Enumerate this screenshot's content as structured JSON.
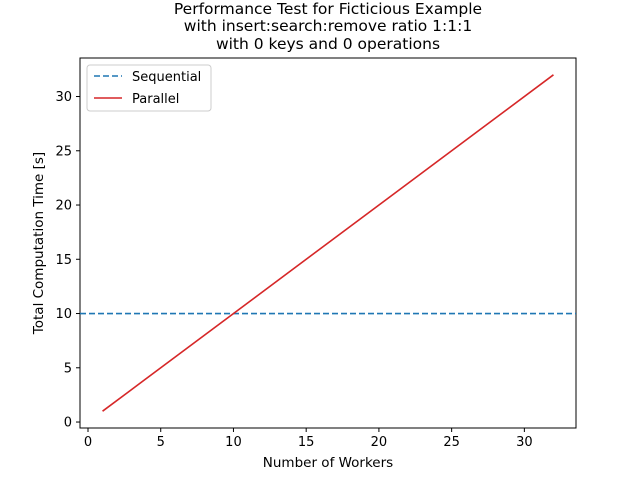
{
  "chart_data": {
    "type": "line",
    "title": [
      "Performance Test for Ficticious Example",
      "with insert:search:remove ratio 1:1:1",
      "with 0 keys and 0 operations"
    ],
    "xlabel": "Number of Workers",
    "ylabel": "Total Computation Time [s]",
    "xlim": [
      -0.55,
      33.55
    ],
    "ylim": [
      -0.55,
      33.55
    ],
    "xticks": [
      0,
      5,
      10,
      15,
      20,
      25,
      30
    ],
    "yticks": [
      0,
      5,
      10,
      15,
      20,
      25,
      30
    ],
    "grid": false,
    "legend_position": "top-left",
    "series": [
      {
        "name": "Sequential",
        "style": "dashed",
        "color": "#1f77b4",
        "kind": "horizontal-line",
        "y": 10
      },
      {
        "name": "Parallel",
        "style": "solid",
        "color": "#d62728",
        "x": [
          1,
          32
        ],
        "y": [
          1,
          32
        ]
      }
    ]
  }
}
